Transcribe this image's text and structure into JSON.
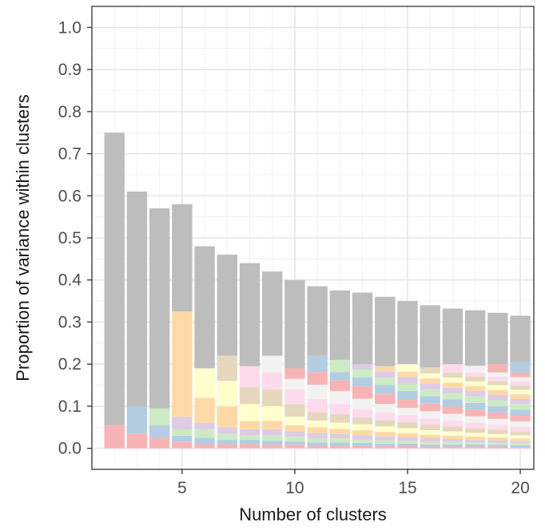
{
  "chart_data": {
    "type": "bar",
    "stacked": true,
    "title": "",
    "xlabel": "Number of clusters",
    "ylabel": "Proportion of variance within clusters",
    "xlim": [
      1,
      20.6
    ],
    "ylim": [
      -0.05,
      1.05
    ],
    "x_ticks": [
      5,
      10,
      15,
      20
    ],
    "y_ticks": [
      0.0,
      0.1,
      0.2,
      0.3,
      0.4,
      0.5,
      0.6,
      0.7,
      0.8,
      0.9,
      1.0
    ],
    "y_tick_labels": [
      "0.0",
      "0.1",
      "0.2",
      "0.3",
      "0.4",
      "0.5",
      "0.6",
      "0.7",
      "0.8",
      "0.9",
      "1.0"
    ],
    "x_tick_labels": [
      "5",
      "10",
      "15",
      "20"
    ],
    "grid": true,
    "legend": "none",
    "x": [
      2,
      3,
      4,
      5,
      6,
      7,
      8,
      9,
      10,
      11,
      12,
      13,
      14,
      15,
      16,
      17,
      18,
      19,
      20
    ],
    "totals": [
      0.75,
      0.61,
      0.57,
      0.58,
      0.48,
      0.46,
      0.44,
      0.42,
      0.4,
      0.385,
      0.375,
      0.37,
      0.36,
      0.35,
      0.34,
      0.332,
      0.328,
      0.322,
      0.315
    ],
    "within_components": [
      [
        0.055
      ],
      [
        0.035,
        0.065
      ],
      [
        0.025,
        0.03,
        0.04
      ],
      [
        0.015,
        0.015,
        0.015,
        0.03,
        0.25
      ],
      [
        0.01,
        0.015,
        0.02,
        0.015,
        0.06,
        0.07
      ],
      [
        0.01,
        0.01,
        0.015,
        0.015,
        0.05,
        0.06,
        0.06
      ],
      [
        0.01,
        0.01,
        0.01,
        0.015,
        0.02,
        0.04,
        0.04,
        0.05
      ],
      [
        0.008,
        0.01,
        0.012,
        0.015,
        0.02,
        0.035,
        0.04,
        0.04,
        0.04
      ],
      [
        0.008,
        0.008,
        0.012,
        0.012,
        0.015,
        0.02,
        0.03,
        0.035,
        0.025,
        0.025
      ],
      [
        0.006,
        0.008,
        0.01,
        0.012,
        0.014,
        0.016,
        0.02,
        0.03,
        0.035,
        0.03,
        0.039
      ],
      [
        0.006,
        0.008,
        0.01,
        0.01,
        0.012,
        0.015,
        0.02,
        0.025,
        0.03,
        0.025,
        0.02,
        0.029
      ],
      [
        0.006,
        0.007,
        0.008,
        0.01,
        0.012,
        0.014,
        0.016,
        0.02,
        0.025,
        0.03,
        0.02,
        0.02,
        0.012
      ],
      [
        0.005,
        0.006,
        0.008,
        0.009,
        0.011,
        0.013,
        0.015,
        0.018,
        0.02,
        0.025,
        0.02,
        0.018,
        0.015,
        0.012
      ],
      [
        0.005,
        0.006,
        0.007,
        0.008,
        0.01,
        0.012,
        0.014,
        0.016,
        0.018,
        0.02,
        0.02,
        0.018,
        0.015,
        0.013,
        0.018
      ],
      [
        0.004,
        0.005,
        0.006,
        0.008,
        0.009,
        0.011,
        0.013,
        0.015,
        0.017,
        0.018,
        0.018,
        0.016,
        0.014,
        0.012,
        0.012,
        0.014
      ],
      [
        0.004,
        0.005,
        0.006,
        0.007,
        0.008,
        0.01,
        0.012,
        0.014,
        0.016,
        0.017,
        0.017,
        0.015,
        0.013,
        0.012,
        0.012,
        0.012,
        0.02
      ],
      [
        0.004,
        0.005,
        0.005,
        0.006,
        0.008,
        0.009,
        0.011,
        0.013,
        0.015,
        0.016,
        0.016,
        0.015,
        0.013,
        0.012,
        0.011,
        0.011,
        0.01,
        0.016
      ],
      [
        0.004,
        0.004,
        0.005,
        0.006,
        0.007,
        0.008,
        0.01,
        0.012,
        0.014,
        0.015,
        0.015,
        0.014,
        0.013,
        0.012,
        0.011,
        0.01,
        0.01,
        0.01,
        0.02
      ],
      [
        0.003,
        0.004,
        0.005,
        0.005,
        0.006,
        0.008,
        0.009,
        0.011,
        0.013,
        0.014,
        0.014,
        0.013,
        0.012,
        0.011,
        0.011,
        0.01,
        0.01,
        0.01,
        0.011,
        0.025
      ]
    ],
    "colors": {
      "between": "#bdbdbd",
      "palette": [
        "#f8b4b4",
        "#b3cde3",
        "#ccebc5",
        "#decbe4",
        "#fed9a6",
        "#ffffcc",
        "#e5d8bd",
        "#fddaec",
        "#f2f2f2"
      ],
      "panel_border": "#333333",
      "grid": "#e6e6e6"
    }
  }
}
